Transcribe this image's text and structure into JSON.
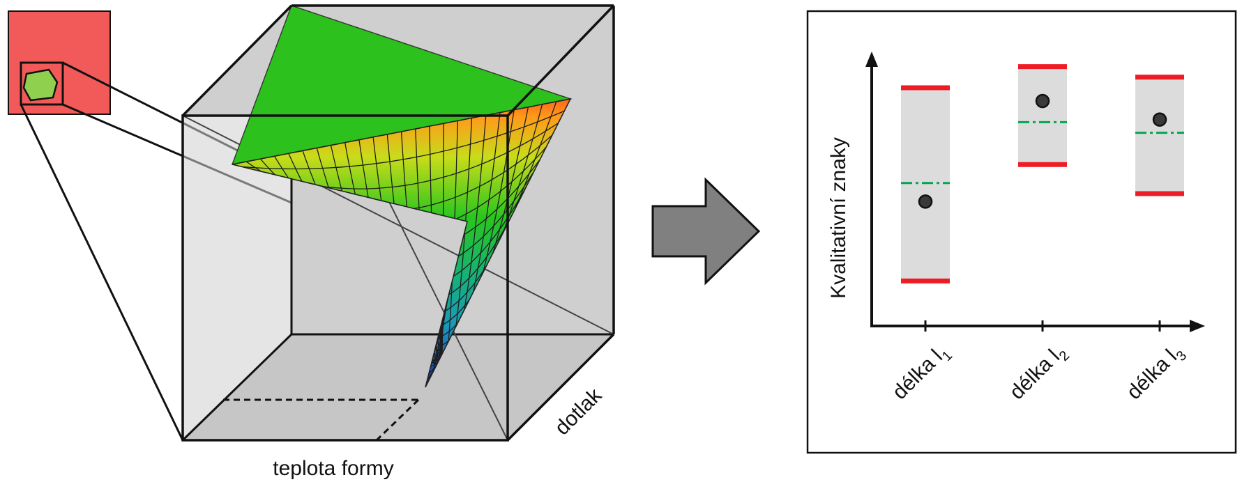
{
  "labels": {
    "temperature_axis": "teplota formy",
    "pressure_axis": "dotlak",
    "y_axis": "Kvalitativní znaky"
  },
  "categories": [
    {
      "base": "délka l",
      "sub": "1",
      "upper_limit": 80,
      "lower_limit": 7,
      "target": 44,
      "measured": 37
    },
    {
      "base": "délka l",
      "sub": "2",
      "upper_limit": 88,
      "lower_limit": 51,
      "target": 67,
      "measured": 75
    },
    {
      "base": "délka l",
      "sub": "3",
      "upper_limit": 84,
      "lower_limit": 40,
      "target": 63,
      "measured": 68
    }
  ],
  "y_range": [
    0,
    100
  ],
  "colors": {
    "mold_square": "#f15a59",
    "part_fill": "#8fd14f",
    "cube_fill": "#cfcfcf",
    "limit_line": "#ee1c24",
    "target_line": "#00a651",
    "measured_point": "#3a3a3a",
    "band_fill": "#dcdcdc",
    "arrow_fill": "#808080"
  },
  "icons": {
    "process_arrow": "right-arrow-icon"
  }
}
